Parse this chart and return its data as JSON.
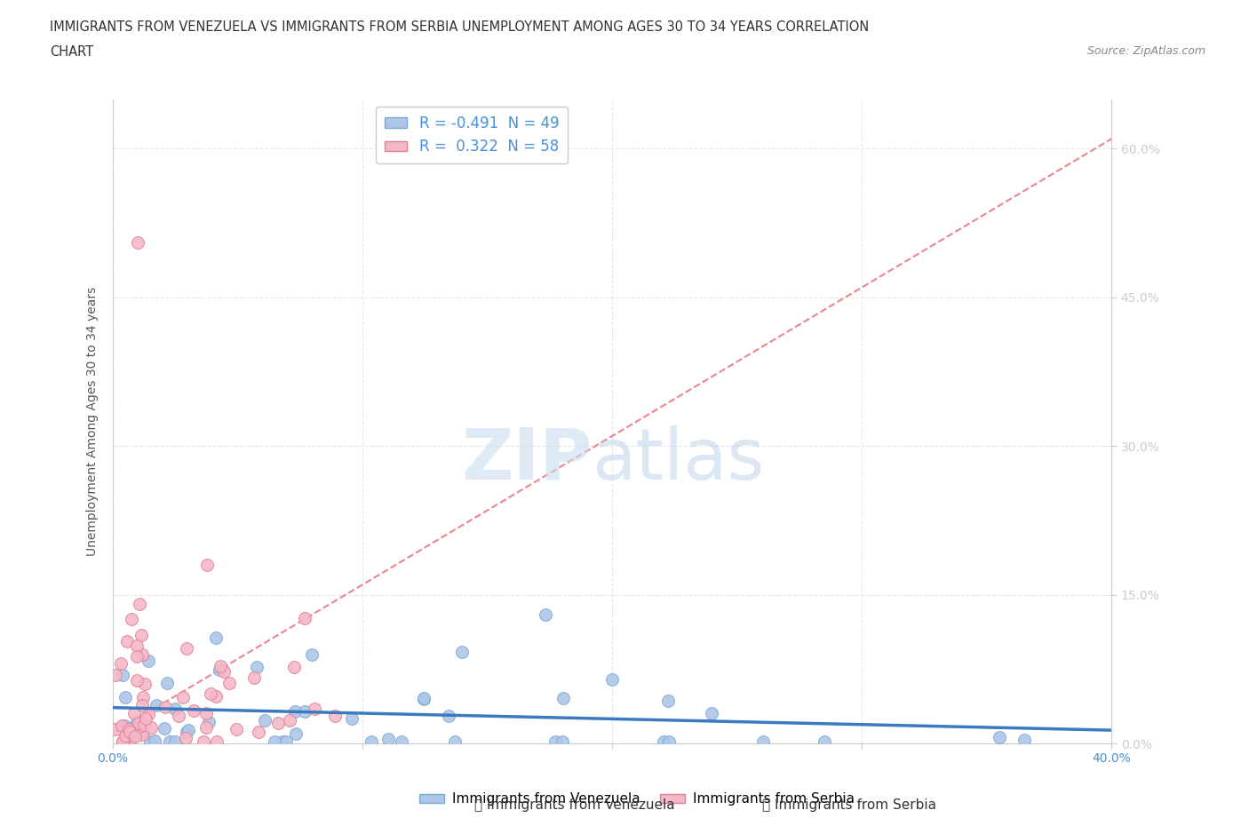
{
  "title_line1": "IMMIGRANTS FROM VENEZUELA VS IMMIGRANTS FROM SERBIA UNEMPLOYMENT AMONG AGES 30 TO 34 YEARS CORRELATION",
  "title_line2": "CHART",
  "source": "Source: ZipAtlas.com",
  "ylabel": "Unemployment Among Ages 30 to 34 years",
  "xlim": [
    0.0,
    0.4
  ],
  "ylim": [
    0.0,
    0.65
  ],
  "ytick_values": [
    0.0,
    0.15,
    0.3,
    0.45,
    0.6
  ],
  "xtick_values": [
    0.0,
    0.1,
    0.2,
    0.3,
    0.4
  ],
  "legend_r_venezuela": "-0.491",
  "legend_n_venezuela": "49",
  "legend_r_serbia": "0.322",
  "legend_n_serbia": "58",
  "color_venezuela": "#aec6e8",
  "color_serbia": "#f4b8c8",
  "edge_venezuela": "#7aaad0",
  "edge_serbia": "#e08090",
  "trendline_venezuela_color": "#3a7abf",
  "trendline_serbia_color": "#e8707a",
  "background_color": "#ffffff",
  "tick_color": "#4a90d9",
  "grid_color": "#e8e8e8"
}
